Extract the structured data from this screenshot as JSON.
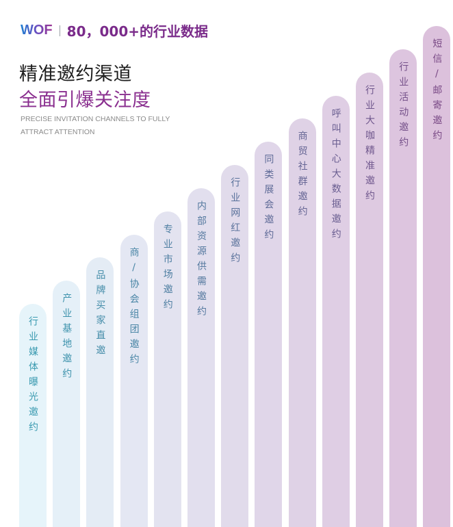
{
  "header": {
    "logo": "WOF",
    "tagline": "80，000+的行业数据"
  },
  "headline": {
    "line1": "精准邀约渠道",
    "line2": "全面引爆关注度"
  },
  "subtitle": {
    "line1": "PRECISE INVITATION CHANNELS TO FULLY",
    "line2": "ATTRACT ATTENTION"
  },
  "colors": {
    "title_dark": "#1e1e1e",
    "title_purple": "#8a2f8f",
    "bar_start": "#e6f4fa",
    "bar_end": "#dcc1dc",
    "text_start": "#3a9ab0",
    "text_end": "#7a4a86"
  },
  "channels": [
    {
      "label": "行业媒体曝光邀约"
    },
    {
      "label": "产业基地邀约"
    },
    {
      "label": "品牌买家直邀"
    },
    {
      "label": "商/协会组团邀约"
    },
    {
      "label": "专业市场邀约"
    },
    {
      "label": "内部资源供需邀约"
    },
    {
      "label": "行业网红邀约"
    },
    {
      "label": "同类展会邀约"
    },
    {
      "label": "商贸社群邀约"
    },
    {
      "label": "呼叫中心大数据邀约"
    },
    {
      "label": "行业大咖精准邀约"
    },
    {
      "label": "行业活动邀约"
    },
    {
      "label": "短信/邮寄邀约"
    }
  ]
}
